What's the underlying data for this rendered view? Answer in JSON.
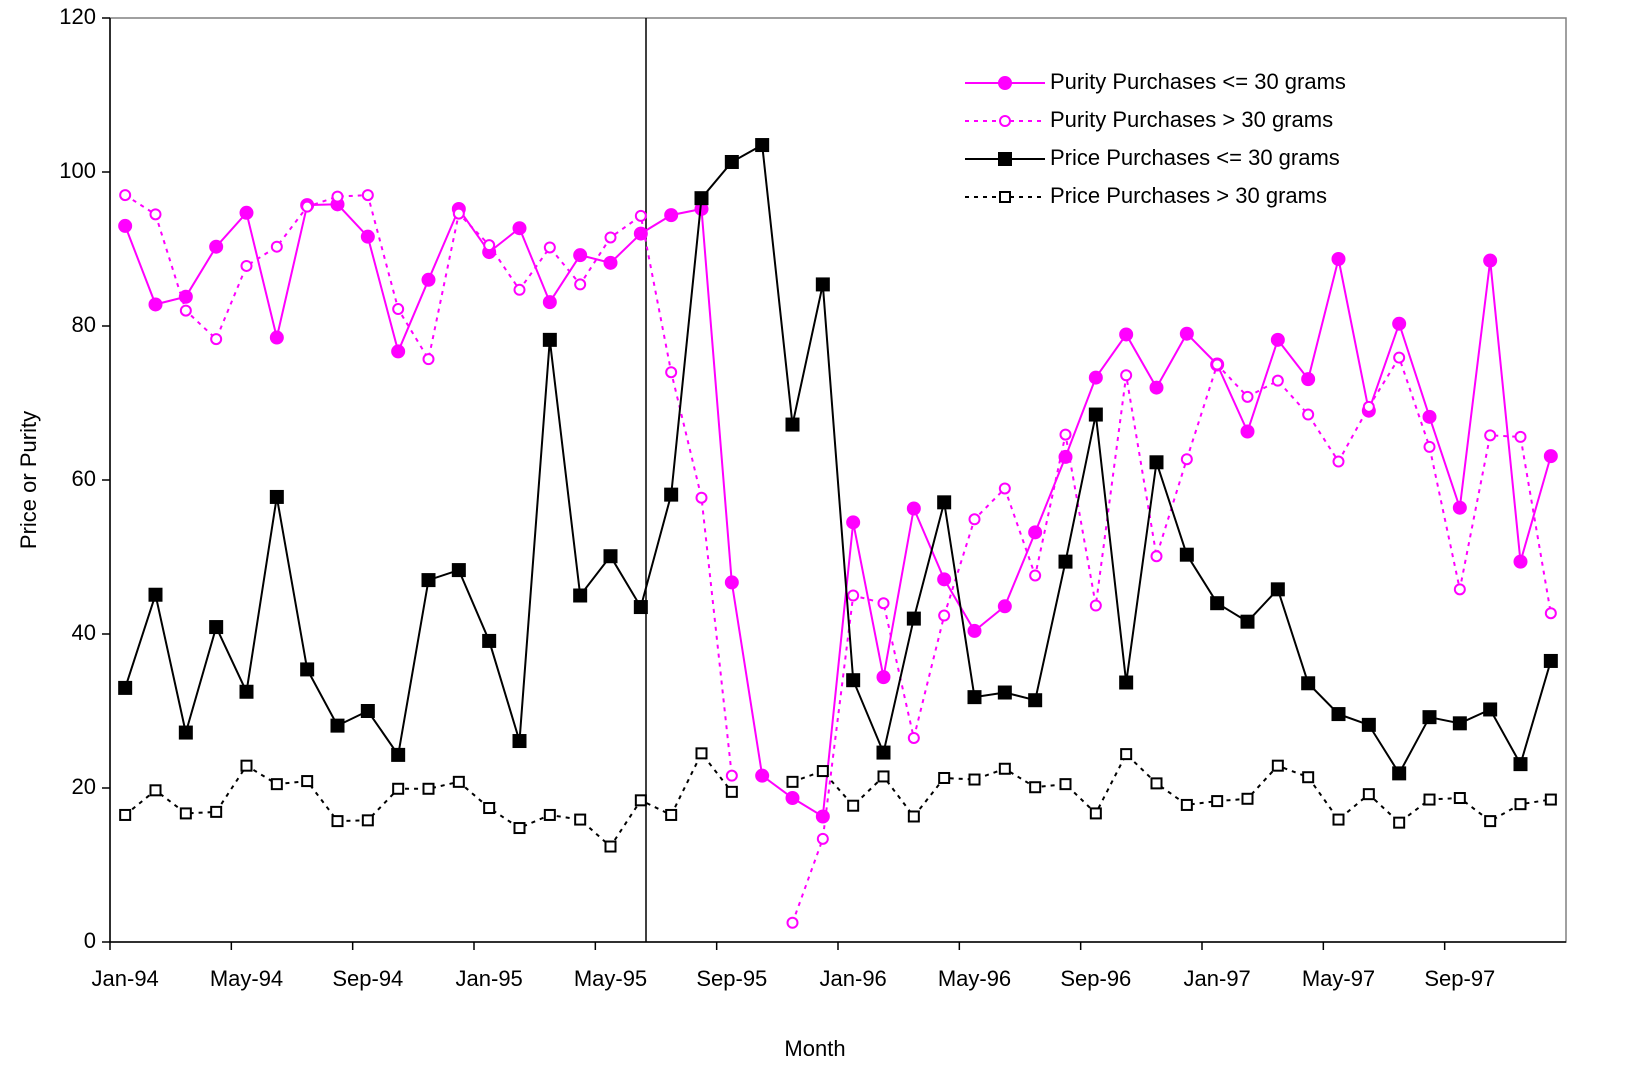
{
  "chart_data": {
    "type": "line",
    "x_label": "Month",
    "y_label": "Price or Purity",
    "categories": [
      "Jan-94",
      null,
      null,
      null,
      "May-94",
      null,
      null,
      null,
      "Sep-94",
      null,
      null,
      null,
      "Jan-95",
      null,
      null,
      null,
      "May-95",
      null,
      null,
      null,
      "Sep-95",
      null,
      null,
      null,
      "Jan-96",
      null,
      null,
      null,
      "May-96",
      null,
      null,
      null,
      "Sep-96",
      null,
      null,
      null,
      "Jan-97",
      null,
      null,
      null,
      "May-97",
      null,
      null,
      null,
      "Sep-97",
      null,
      null,
      null
    ],
    "ylim": [
      0,
      120
    ],
    "yticks": [
      0,
      20,
      40,
      60,
      80,
      100,
      120
    ],
    "grid": false,
    "legend": "top-right",
    "series": [
      {
        "name": "Purity Purchases <= 30 grams",
        "color": "#ff00ff",
        "marker": "circle",
        "filled": true,
        "dashed": false,
        "values": [
          93,
          82.8,
          83.8,
          90.3,
          94.7,
          78.5,
          95.7,
          95.8,
          91.6,
          76.7,
          86,
          95.2,
          89.6,
          92.7,
          83.1,
          89.2,
          88.2,
          92,
          94.4,
          95.2,
          46.7,
          21.6,
          18.7,
          16.3,
          54.5,
          34.4,
          56.3,
          47.1,
          40.4,
          43.6,
          53.2,
          63,
          73.3,
          78.9,
          72,
          79,
          75,
          66.3,
          78.2,
          73.1,
          88.7,
          69,
          80.3,
          68.2,
          56.4,
          88.5,
          49.4,
          63.1
        ]
      },
      {
        "name": "Purity Purchases > 30 grams",
        "color": "#ff00ff",
        "marker": "circle",
        "filled": false,
        "dashed": true,
        "values": [
          97,
          94.5,
          82,
          78.3,
          87.8,
          90.3,
          95.5,
          96.8,
          97,
          82.2,
          75.7,
          94.6,
          90.5,
          84.7,
          90.2,
          85.4,
          91.5,
          94.3,
          74,
          57.7,
          21.6,
          null,
          2.5,
          13.4,
          45,
          44,
          26.5,
          42.4,
          54.9,
          58.9,
          47.6,
          65.9,
          43.7,
          73.6,
          50.1,
          62.7,
          75,
          70.8,
          72.9,
          68.5,
          62.4,
          69.5,
          75.9,
          64.3,
          45.8,
          65.8,
          65.6,
          42.7
        ]
      },
      {
        "name": "Price Purchases <= 30 grams",
        "color": "#000000",
        "marker": "square",
        "filled": true,
        "dashed": false,
        "values": [
          33,
          45.1,
          27.2,
          40.9,
          32.5,
          57.8,
          35.4,
          28.1,
          30,
          24.3,
          47,
          48.3,
          39.1,
          26.1,
          78.2,
          45,
          50.1,
          43.5,
          58.1,
          96.6,
          101.3,
          103.5,
          67.2,
          85.4,
          34,
          24.6,
          42,
          57.1,
          31.8,
          32.4,
          31.4,
          49.4,
          68.5,
          33.7,
          62.3,
          50.3,
          44,
          41.6,
          45.8,
          33.6,
          29.6,
          28.2,
          21.9,
          29.2,
          28.4,
          30.2,
          23.1,
          36.5
        ]
      },
      {
        "name": "Price Purchases > 30 grams",
        "color": "#000000",
        "marker": "square",
        "filled": false,
        "dashed": true,
        "values": [
          16.5,
          19.7,
          16.7,
          16.9,
          22.9,
          20.5,
          20.9,
          15.7,
          15.8,
          19.9,
          19.9,
          20.8,
          17.4,
          14.8,
          16.5,
          15.9,
          12.4,
          18.4,
          16.5,
          24.5,
          19.5,
          null,
          20.8,
          22.2,
          17.7,
          21.5,
          16.3,
          21.3,
          21.1,
          22.5,
          20.1,
          20.5,
          16.7,
          24.4,
          20.6,
          17.8,
          18.3,
          18.6,
          22.9,
          21.4,
          15.9,
          19.2,
          15.5,
          18.5,
          18.7,
          15.7,
          17.9,
          18.5
        ]
      }
    ]
  }
}
